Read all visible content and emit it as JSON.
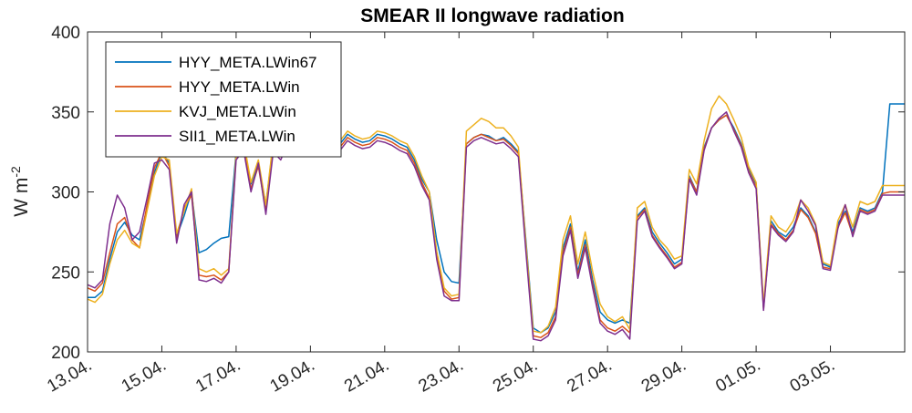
{
  "chart_data": {
    "type": "line",
    "title": "SMEAR II longwave radiation",
    "ylabel": "W m",
    "ylabel_exp": "-2",
    "ylim": [
      200,
      400
    ],
    "yticks": [
      200,
      250,
      300,
      350,
      400
    ],
    "xlim": [
      0,
      22
    ],
    "xticks": [
      {
        "x": 0,
        "label": "13.04."
      },
      {
        "x": 2,
        "label": "15.04."
      },
      {
        "x": 4,
        "label": "17.04."
      },
      {
        "x": 6,
        "label": "19.04."
      },
      {
        "x": 8,
        "label": "21.04."
      },
      {
        "x": 10,
        "label": "23.04."
      },
      {
        "x": 12,
        "label": "25.04."
      },
      {
        "x": 14,
        "label": "27.04."
      },
      {
        "x": 16,
        "label": "29.04."
      },
      {
        "x": 18,
        "label": "01.05."
      },
      {
        "x": 20,
        "label": "03.05."
      }
    ],
    "legend_position": "top-left",
    "x": [
      0,
      0.2,
      0.4,
      0.6,
      0.8,
      1.0,
      1.2,
      1.4,
      1.6,
      1.8,
      2.0,
      2.2,
      2.4,
      2.6,
      2.8,
      3.0,
      3.2,
      3.4,
      3.6,
      3.8,
      4.0,
      4.2,
      4.4,
      4.6,
      4.8,
      5.0,
      5.2,
      5.4,
      5.6,
      5.8,
      6.0,
      6.2,
      6.4,
      6.6,
      6.8,
      7.0,
      7.2,
      7.4,
      7.6,
      7.8,
      8.0,
      8.2,
      8.4,
      8.6,
      8.8,
      9.0,
      9.2,
      9.4,
      9.6,
      9.8,
      10.0,
      10.2,
      10.4,
      10.6,
      10.8,
      11.0,
      11.2,
      11.4,
      11.6,
      11.8,
      12.0,
      12.2,
      12.4,
      12.6,
      12.8,
      13.0,
      13.2,
      13.4,
      13.6,
      13.8,
      14.0,
      14.2,
      14.4,
      14.6,
      14.8,
      15.0,
      15.2,
      15.4,
      15.6,
      15.8,
      16.0,
      16.2,
      16.4,
      16.6,
      16.8,
      17.0,
      17.2,
      17.4,
      17.6,
      17.8,
      18.0,
      18.2,
      18.4,
      18.6,
      18.8,
      19.0,
      19.2,
      19.4,
      19.6,
      19.8,
      20.0,
      20.2,
      20.4,
      20.6,
      20.8,
      21.0,
      21.2,
      21.4,
      21.6,
      21.8,
      22.0
    ],
    "series": [
      {
        "name": "HYY_META.LWin67",
        "color": "#0072BD",
        "values": [
          234,
          234,
          238,
          258,
          275,
          281,
          273,
          270,
          290,
          312,
          325,
          318,
          272,
          285,
          300,
          262,
          264,
          268,
          271,
          272,
          325,
          330,
          305,
          318,
          292,
          330,
          325,
          335,
          330,
          332,
          335,
          330,
          338,
          335,
          330,
          336,
          333,
          331,
          332,
          336,
          335,
          333,
          330,
          328,
          320,
          308,
          300,
          270,
          250,
          244,
          243,
          330,
          334,
          336,
          335,
          332,
          334,
          330,
          325,
          270,
          215,
          212,
          215,
          225,
          265,
          280,
          250,
          270,
          245,
          225,
          220,
          218,
          220,
          218,
          285,
          290,
          275,
          268,
          262,
          255,
          258,
          310,
          300,
          328,
          340,
          345,
          348,
          340,
          330,
          315,
          305,
          228,
          282,
          275,
          272,
          278,
          290,
          285,
          275,
          255,
          253,
          280,
          288,
          275,
          290,
          288,
          290,
          300,
          355,
          355,
          355
        ]
      },
      {
        "name": "HYY_META.LWin",
        "color": "#D95319",
        "values": [
          240,
          238,
          243,
          262,
          280,
          284,
          270,
          265,
          292,
          315,
          325,
          316,
          270,
          290,
          298,
          248,
          247,
          248,
          245,
          250,
          322,
          328,
          302,
          316,
          288,
          328,
          322,
          333,
          328,
          330,
          332,
          329,
          336,
          333,
          328,
          334,
          331,
          329,
          330,
          334,
          333,
          331,
          328,
          326,
          318,
          306,
          296,
          260,
          238,
          233,
          234,
          330,
          334,
          336,
          334,
          332,
          333,
          329,
          324,
          266,
          210,
          209,
          212,
          222,
          262,
          278,
          248,
          267,
          242,
          220,
          215,
          213,
          216,
          212,
          284,
          289,
          273,
          266,
          260,
          253,
          256,
          309,
          300,
          327,
          340,
          345,
          348,
          339,
          329,
          313,
          303,
          227,
          280,
          274,
          270,
          276,
          289,
          284,
          274,
          253,
          252,
          278,
          287,
          273,
          289,
          287,
          289,
          299,
          300,
          300,
          300
        ]
      },
      {
        "name": "KVJ_META.LWin",
        "color": "#EDB120",
        "values": [
          233,
          231,
          236,
          255,
          270,
          276,
          268,
          265,
          288,
          310,
          322,
          320,
          274,
          288,
          302,
          252,
          250,
          252,
          248,
          252,
          324,
          332,
          306,
          320,
          292,
          332,
          326,
          337,
          332,
          334,
          336,
          331,
          340,
          337,
          332,
          338,
          335,
          333,
          334,
          338,
          337,
          335,
          332,
          330,
          322,
          310,
          300,
          263,
          240,
          235,
          236,
          338,
          342,
          346,
          344,
          340,
          340,
          335,
          328,
          268,
          213,
          212,
          216,
          228,
          270,
          285,
          255,
          275,
          250,
          230,
          222,
          219,
          222,
          214,
          290,
          294,
          278,
          270,
          265,
          258,
          260,
          314,
          305,
          332,
          352,
          360,
          355,
          345,
          334,
          316,
          306,
          230,
          285,
          278,
          275,
          282,
          295,
          290,
          280,
          256,
          254,
          282,
          292,
          278,
          294,
          292,
          294,
          304,
          304,
          304,
          304
        ]
      },
      {
        "name": "SII1_META.LWin",
        "color": "#7E2F8E",
        "values": [
          242,
          240,
          245,
          280,
          298,
          290,
          270,
          275,
          296,
          318,
          320,
          314,
          268,
          292,
          300,
          245,
          244,
          246,
          243,
          250,
          320,
          326,
          300,
          318,
          286,
          325,
          320,
          331,
          326,
          328,
          330,
          327,
          334,
          331,
          326,
          332,
          329,
          327,
          328,
          332,
          331,
          329,
          326,
          324,
          316,
          304,
          295,
          258,
          235,
          232,
          232,
          328,
          332,
          334,
          332,
          330,
          331,
          327,
          322,
          263,
          208,
          207,
          210,
          220,
          260,
          276,
          246,
          265,
          240,
          218,
          213,
          211,
          214,
          208,
          282,
          288,
          272,
          265,
          259,
          252,
          255,
          308,
          298,
          326,
          340,
          346,
          350,
          338,
          328,
          312,
          302,
          226,
          279,
          273,
          269,
          275,
          295,
          288,
          279,
          252,
          251,
          277,
          292,
          272,
          288,
          286,
          288,
          298,
          298,
          298,
          298
        ]
      }
    ]
  }
}
